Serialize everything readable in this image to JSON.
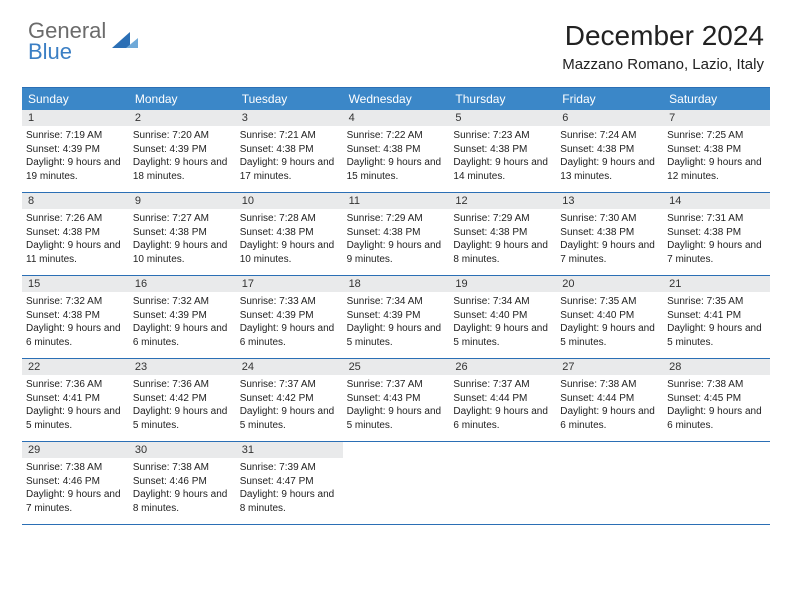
{
  "logo": {
    "line1": "General",
    "line2": "Blue"
  },
  "title": "December 2024",
  "location": "Mazzano Romano, Lazio, Italy",
  "colors": {
    "header_bg": "#3b87c8",
    "border": "#2b6fb5",
    "daynum_bg": "#e9eaeb",
    "logo_gray": "#6b6b6b",
    "logo_blue": "#3b7fc4"
  },
  "day_headers": [
    "Sunday",
    "Monday",
    "Tuesday",
    "Wednesday",
    "Thursday",
    "Friday",
    "Saturday"
  ],
  "weeks": [
    [
      {
        "n": "1",
        "sr": "7:19 AM",
        "ss": "4:39 PM",
        "dl": "9 hours and 19 minutes."
      },
      {
        "n": "2",
        "sr": "7:20 AM",
        "ss": "4:39 PM",
        "dl": "9 hours and 18 minutes."
      },
      {
        "n": "3",
        "sr": "7:21 AM",
        "ss": "4:38 PM",
        "dl": "9 hours and 17 minutes."
      },
      {
        "n": "4",
        "sr": "7:22 AM",
        "ss": "4:38 PM",
        "dl": "9 hours and 15 minutes."
      },
      {
        "n": "5",
        "sr": "7:23 AM",
        "ss": "4:38 PM",
        "dl": "9 hours and 14 minutes."
      },
      {
        "n": "6",
        "sr": "7:24 AM",
        "ss": "4:38 PM",
        "dl": "9 hours and 13 minutes."
      },
      {
        "n": "7",
        "sr": "7:25 AM",
        "ss": "4:38 PM",
        "dl": "9 hours and 12 minutes."
      }
    ],
    [
      {
        "n": "8",
        "sr": "7:26 AM",
        "ss": "4:38 PM",
        "dl": "9 hours and 11 minutes."
      },
      {
        "n": "9",
        "sr": "7:27 AM",
        "ss": "4:38 PM",
        "dl": "9 hours and 10 minutes."
      },
      {
        "n": "10",
        "sr": "7:28 AM",
        "ss": "4:38 PM",
        "dl": "9 hours and 10 minutes."
      },
      {
        "n": "11",
        "sr": "7:29 AM",
        "ss": "4:38 PM",
        "dl": "9 hours and 9 minutes."
      },
      {
        "n": "12",
        "sr": "7:29 AM",
        "ss": "4:38 PM",
        "dl": "9 hours and 8 minutes."
      },
      {
        "n": "13",
        "sr": "7:30 AM",
        "ss": "4:38 PM",
        "dl": "9 hours and 7 minutes."
      },
      {
        "n": "14",
        "sr": "7:31 AM",
        "ss": "4:38 PM",
        "dl": "9 hours and 7 minutes."
      }
    ],
    [
      {
        "n": "15",
        "sr": "7:32 AM",
        "ss": "4:38 PM",
        "dl": "9 hours and 6 minutes."
      },
      {
        "n": "16",
        "sr": "7:32 AM",
        "ss": "4:39 PM",
        "dl": "9 hours and 6 minutes."
      },
      {
        "n": "17",
        "sr": "7:33 AM",
        "ss": "4:39 PM",
        "dl": "9 hours and 6 minutes."
      },
      {
        "n": "18",
        "sr": "7:34 AM",
        "ss": "4:39 PM",
        "dl": "9 hours and 5 minutes."
      },
      {
        "n": "19",
        "sr": "7:34 AM",
        "ss": "4:40 PM",
        "dl": "9 hours and 5 minutes."
      },
      {
        "n": "20",
        "sr": "7:35 AM",
        "ss": "4:40 PM",
        "dl": "9 hours and 5 minutes."
      },
      {
        "n": "21",
        "sr": "7:35 AM",
        "ss": "4:41 PM",
        "dl": "9 hours and 5 minutes."
      }
    ],
    [
      {
        "n": "22",
        "sr": "7:36 AM",
        "ss": "4:41 PM",
        "dl": "9 hours and 5 minutes."
      },
      {
        "n": "23",
        "sr": "7:36 AM",
        "ss": "4:42 PM",
        "dl": "9 hours and 5 minutes."
      },
      {
        "n": "24",
        "sr": "7:37 AM",
        "ss": "4:42 PM",
        "dl": "9 hours and 5 minutes."
      },
      {
        "n": "25",
        "sr": "7:37 AM",
        "ss": "4:43 PM",
        "dl": "9 hours and 5 minutes."
      },
      {
        "n": "26",
        "sr": "7:37 AM",
        "ss": "4:44 PM",
        "dl": "9 hours and 6 minutes."
      },
      {
        "n": "27",
        "sr": "7:38 AM",
        "ss": "4:44 PM",
        "dl": "9 hours and 6 minutes."
      },
      {
        "n": "28",
        "sr": "7:38 AM",
        "ss": "4:45 PM",
        "dl": "9 hours and 6 minutes."
      }
    ],
    [
      {
        "n": "29",
        "sr": "7:38 AM",
        "ss": "4:46 PM",
        "dl": "9 hours and 7 minutes."
      },
      {
        "n": "30",
        "sr": "7:38 AM",
        "ss": "4:46 PM",
        "dl": "9 hours and 8 minutes."
      },
      {
        "n": "31",
        "sr": "7:39 AM",
        "ss": "4:47 PM",
        "dl": "9 hours and 8 minutes."
      },
      null,
      null,
      null,
      null
    ]
  ],
  "labels": {
    "sunrise": "Sunrise:",
    "sunset": "Sunset:",
    "daylight": "Daylight:"
  }
}
